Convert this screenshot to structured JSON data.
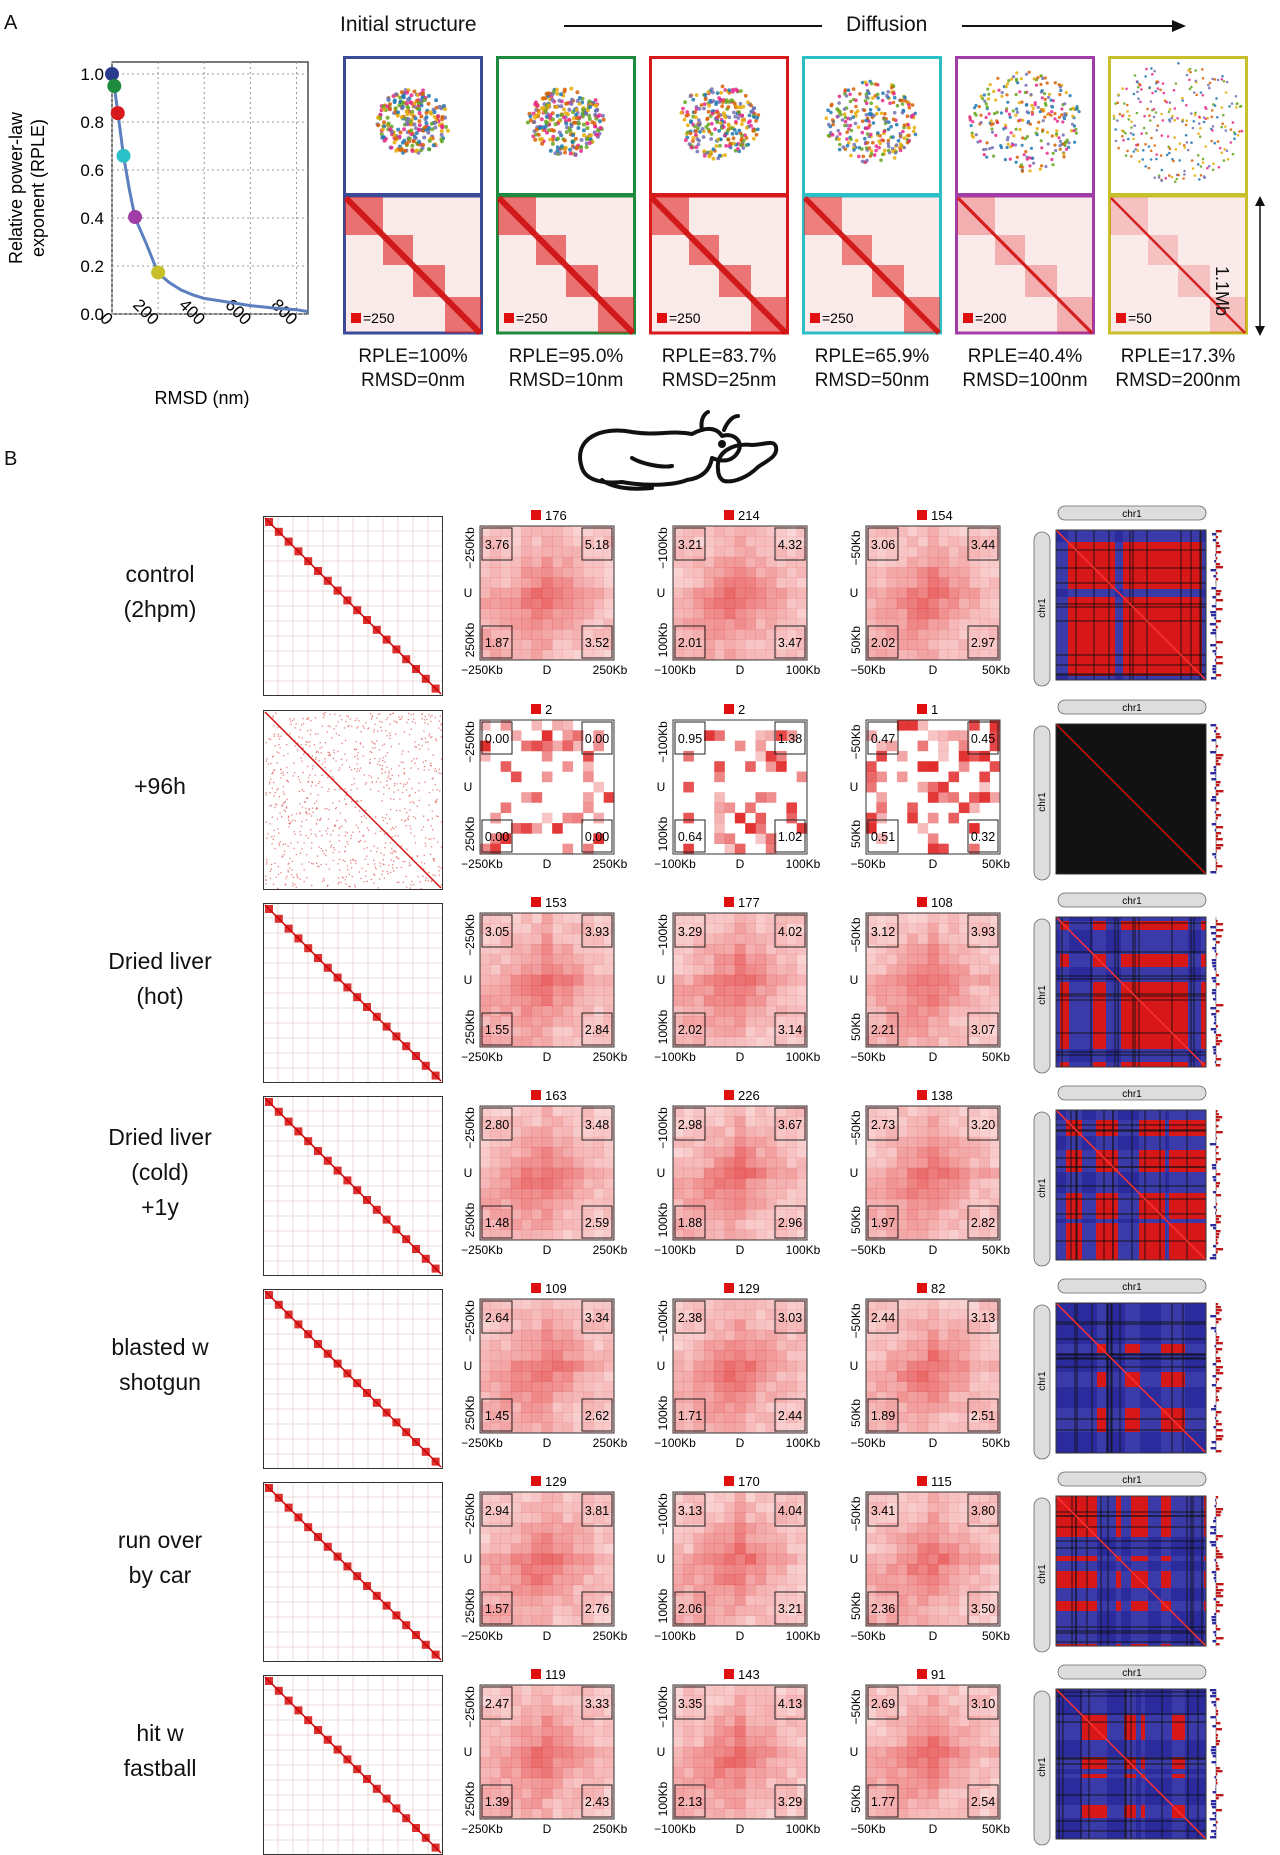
{
  "panelA": {
    "letter": "A",
    "header_initial": "Initial structure",
    "header_diffusion": "Diffusion",
    "scale_label": "1.1Mb",
    "chart_data": {
      "type": "line",
      "xlabel": "RMSD (nm)",
      "ylabel": "Relative power-law exponent (RPLE)",
      "xlim": [
        0,
        850
      ],
      "ylim": [
        0,
        1.05
      ],
      "xticks": [
        "0",
        "200",
        "400",
        "600",
        "800"
      ],
      "yticks": [
        "0.0",
        "0.2",
        "0.4",
        "0.6",
        "0.8",
        "1.0"
      ],
      "grid": true,
      "series": [
        {
          "x": [
            0,
            10,
            25,
            50,
            75,
            100,
            150,
            200,
            250,
            300,
            350,
            400,
            500,
            600,
            700,
            800,
            850
          ],
          "values": [
            1.0,
            0.95,
            0.84,
            0.66,
            0.52,
            0.4,
            0.29,
            0.17,
            0.13,
            0.1,
            0.08,
            0.065,
            0.05,
            0.035,
            0.025,
            0.018,
            0.01
          ]
        }
      ],
      "markers": [
        {
          "x": 0,
          "y": 1.0,
          "color": "#2b3c8e"
        },
        {
          "x": 10,
          "y": 0.95,
          "color": "#1e8a3e"
        },
        {
          "x": 25,
          "y": 0.837,
          "color": "#d7191c"
        },
        {
          "x": 50,
          "y": 0.659,
          "color": "#2bc0c8"
        },
        {
          "x": 100,
          "y": 0.404,
          "color": "#a23ca6"
        },
        {
          "x": 200,
          "y": 0.173,
          "color": "#c8c02a"
        }
      ]
    },
    "snapshots": [
      {
        "color": "#3b4b9a",
        "scale": "=250",
        "rple": "RPLE=100%",
        "rmsd": "RMSD=0nm",
        "spread": 0.3,
        "contrast": 1.0
      },
      {
        "color": "#1e8a3e",
        "scale": "=250",
        "rple": "RPLE=95.0%",
        "rmsd": "RMSD=10nm",
        "spread": 0.34,
        "contrast": 1.0
      },
      {
        "color": "#d7191c",
        "scale": "=250",
        "rple": "RPLE=83.7%",
        "rmsd": "RMSD=25nm",
        "spread": 0.4,
        "contrast": 0.95
      },
      {
        "color": "#2bc0c8",
        "scale": "=250",
        "rple": "RPLE=65.9%",
        "rmsd": "RMSD=50nm",
        "spread": 0.5,
        "contrast": 0.85
      },
      {
        "color": "#a23ca6",
        "scale": "=200",
        "rple": "RPLE=40.4%",
        "rmsd": "RMSD=100nm",
        "spread": 0.7,
        "contrast": 0.3
      },
      {
        "color": "#c8c02a",
        "scale": "=50",
        "rple": "RPLE=17.3%",
        "rmsd": "RMSD=200nm",
        "spread": 0.95,
        "contrast": 0.1
      }
    ]
  },
  "panelB": {
    "letter": "B",
    "chr_label": "chr1",
    "mid_label": "U",
    "center_label": "D",
    "conditions": [
      {
        "label_lines": [
          "control",
          "(2hpm)"
        ],
        "noisy": false,
        "pileups": [
          {
            "max": "176",
            "ul": "3.76",
            "ur": "5.18",
            "ll": "1.87",
            "lr": "3.52"
          },
          {
            "max": "214",
            "ul": "3.21",
            "ur": "4.32",
            "ll": "2.01",
            "lr": "3.47"
          },
          {
            "max": "154",
            "ul": "3.06",
            "ur": "3.44",
            "ll": "2.02",
            "lr": "2.97"
          }
        ]
      },
      {
        "label_lines": [
          "+96h"
        ],
        "noisy": true,
        "pileups": [
          {
            "max": "2",
            "ul": "0.00",
            "ur": "0.00",
            "ll": "0.00",
            "lr": "0.00"
          },
          {
            "max": "2",
            "ul": "0.95",
            "ur": "1.38",
            "ll": "0.64",
            "lr": "1.02"
          },
          {
            "max": "1",
            "ul": "0.47",
            "ur": "0.45",
            "ll": "0.51",
            "lr": "0.32"
          }
        ]
      },
      {
        "label_lines": [
          "Dried liver",
          "(hot)"
        ],
        "noisy": false,
        "pileups": [
          {
            "max": "153",
            "ul": "3.05",
            "ur": "3.93",
            "ll": "1.55",
            "lr": "2.84"
          },
          {
            "max": "177",
            "ul": "3.29",
            "ur": "4.02",
            "ll": "2.02",
            "lr": "3.14"
          },
          {
            "max": "108",
            "ul": "3.12",
            "ur": "3.93",
            "ll": "2.21",
            "lr": "3.07"
          }
        ]
      },
      {
        "label_lines": [
          "Dried liver",
          "(cold)",
          "+1y"
        ],
        "noisy": false,
        "pileups": [
          {
            "max": "163",
            "ul": "2.80",
            "ur": "3.48",
            "ll": "1.48",
            "lr": "2.59"
          },
          {
            "max": "226",
            "ul": "2.98",
            "ur": "3.67",
            "ll": "1.88",
            "lr": "2.96"
          },
          {
            "max": "138",
            "ul": "2.73",
            "ur": "3.20",
            "ll": "1.97",
            "lr": "2.82"
          }
        ]
      },
      {
        "label_lines": [
          "blasted w",
          "shotgun"
        ],
        "noisy": false,
        "pileups": [
          {
            "max": "109",
            "ul": "2.64",
            "ur": "3.34",
            "ll": "1.45",
            "lr": "2.62"
          },
          {
            "max": "129",
            "ul": "2.38",
            "ur": "3.03",
            "ll": "1.71",
            "lr": "2.44"
          },
          {
            "max": "82",
            "ul": "2.44",
            "ur": "3.13",
            "ll": "1.89",
            "lr": "2.51"
          }
        ]
      },
      {
        "label_lines": [
          "run over",
          "by car"
        ],
        "noisy": false,
        "pileups": [
          {
            "max": "129",
            "ul": "2.94",
            "ur": "3.81",
            "ll": "1.57",
            "lr": "2.76"
          },
          {
            "max": "170",
            "ul": "3.13",
            "ur": "4.04",
            "ll": "2.06",
            "lr": "3.21"
          },
          {
            "max": "115",
            "ul": "3.41",
            "ur": "3.80",
            "ll": "2.36",
            "lr": "3.50"
          }
        ]
      },
      {
        "label_lines": [
          "hit w",
          "fastball"
        ],
        "noisy": false,
        "pileups": [
          {
            "max": "119",
            "ul": "2.47",
            "ur": "3.33",
            "ll": "1.39",
            "lr": "2.43"
          },
          {
            "max": "143",
            "ul": "3.35",
            "ur": "4.13",
            "ll": "2.13",
            "lr": "3.29"
          },
          {
            "max": "91",
            "ul": "2.69",
            "ur": "3.10",
            "ll": "1.77",
            "lr": "2.54"
          }
        ]
      }
    ],
    "pileup_axes": [
      {
        "left": "−250Kb",
        "right": "250Kb",
        "ytop": "−250Kb",
        "ybot": "250Kb"
      },
      {
        "left": "−100Kb",
        "right": "100Kb",
        "ytop": "−100Kb",
        "ybot": "100Kb"
      },
      {
        "left": "−50Kb",
        "right": "50Kb",
        "ytop": "−50Kb",
        "ybot": "50Kb"
      }
    ]
  }
}
